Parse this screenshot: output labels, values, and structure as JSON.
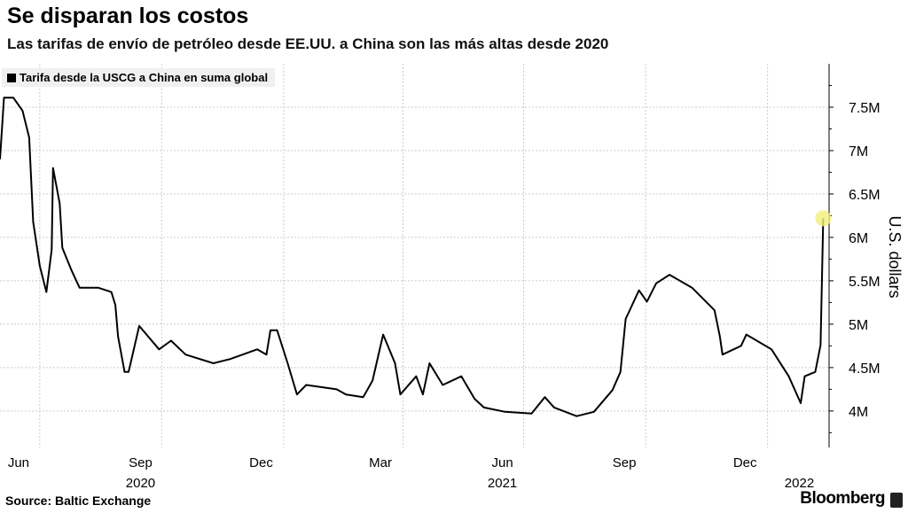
{
  "title": "Se disparan los costos",
  "subtitle": "Las tarifas de envío de petróleo desde EE.UU. a China son las más altas desde 2020",
  "source": "Source:  Baltic Exchange",
  "brand": "Bloomberg",
  "chart_data": {
    "type": "line",
    "title": "Se disparan los costos",
    "ylabel": "U.S. dollars",
    "ylim": [
      3580000,
      8000000
    ],
    "y_ticks": [
      {
        "v": 4000000,
        "label": "4M"
      },
      {
        "v": 4500000,
        "label": "4.5M"
      },
      {
        "v": 5000000,
        "label": "5M"
      },
      {
        "v": 5500000,
        "label": "5.5M"
      },
      {
        "v": 6000000,
        "label": "6M"
      },
      {
        "v": 6500000,
        "label": "6.5M"
      },
      {
        "v": 7000000,
        "label": "7M"
      },
      {
        "v": 7500000,
        "label": "7.5M"
      }
    ],
    "x_ticks": [
      {
        "date": "2020-06-15",
        "label": "Jun",
        "year": ""
      },
      {
        "date": "2020-09-15",
        "label": "Sep",
        "year": "2020"
      },
      {
        "date": "2020-12-15",
        "label": "Dec",
        "year": ""
      },
      {
        "date": "2021-03-15",
        "label": "Mar",
        "year": ""
      },
      {
        "date": "2021-06-15",
        "label": "Jun",
        "year": "2021"
      },
      {
        "date": "2021-09-15",
        "label": "Sep",
        "year": ""
      },
      {
        "date": "2021-12-15",
        "label": "Dec",
        "year": ""
      },
      {
        "date": "2022-01-25",
        "label": "",
        "year": "2022"
      }
    ],
    "grid_lines": [
      "2020-07-01",
      "2020-10-01",
      "2021-01-01",
      "2021-04-01",
      "2021-07-01",
      "2021-10-01",
      "2022-01-01"
    ],
    "grid": true,
    "legend_position": "top-left",
    "series": [
      {
        "name": "Tarifa desde la USCG a China en suma global",
        "color": "#000000",
        "points": [
          [
            "2020-06-01",
            6900000
          ],
          [
            "2020-06-04",
            7610000
          ],
          [
            "2020-06-11",
            7610000
          ],
          [
            "2020-06-18",
            7460000
          ],
          [
            "2020-06-23",
            7150000
          ],
          [
            "2020-06-26",
            6180000
          ],
          [
            "2020-07-01",
            5670000
          ],
          [
            "2020-07-06",
            5370000
          ],
          [
            "2020-07-10",
            5860000
          ],
          [
            "2020-07-11",
            6800000
          ],
          [
            "2020-07-16",
            6390000
          ],
          [
            "2020-07-18",
            5880000
          ],
          [
            "2020-07-25",
            5620000
          ],
          [
            "2020-07-31",
            5420000
          ],
          [
            "2020-08-14",
            5420000
          ],
          [
            "2020-08-24",
            5370000
          ],
          [
            "2020-08-27",
            5220000
          ],
          [
            "2020-08-29",
            4860000
          ],
          [
            "2020-09-03",
            4450000
          ],
          [
            "2020-09-06",
            4450000
          ],
          [
            "2020-09-14",
            4980000
          ],
          [
            "2020-09-29",
            4710000
          ],
          [
            "2020-10-08",
            4810000
          ],
          [
            "2020-10-19",
            4650000
          ],
          [
            "2020-11-09",
            4550000
          ],
          [
            "2020-11-22",
            4600000
          ],
          [
            "2020-12-12",
            4710000
          ],
          [
            "2020-12-19",
            4650000
          ],
          [
            "2020-12-22",
            4930000
          ],
          [
            "2020-12-27",
            4930000
          ],
          [
            "2021-01-04",
            4550000
          ],
          [
            "2021-01-11",
            4190000
          ],
          [
            "2021-01-18",
            4300000
          ],
          [
            "2021-02-10",
            4250000
          ],
          [
            "2021-02-17",
            4190000
          ],
          [
            "2021-03-02",
            4160000
          ],
          [
            "2021-03-09",
            4350000
          ],
          [
            "2021-03-17",
            4880000
          ],
          [
            "2021-03-26",
            4550000
          ],
          [
            "2021-03-30",
            4190000
          ],
          [
            "2021-04-11",
            4400000
          ],
          [
            "2021-04-16",
            4190000
          ],
          [
            "2021-04-21",
            4550000
          ],
          [
            "2021-05-01",
            4300000
          ],
          [
            "2021-05-15",
            4400000
          ],
          [
            "2021-05-25",
            4140000
          ],
          [
            "2021-06-01",
            4040000
          ],
          [
            "2021-06-17",
            3990000
          ],
          [
            "2021-07-07",
            3970000
          ],
          [
            "2021-07-17",
            4160000
          ],
          [
            "2021-07-24",
            4040000
          ],
          [
            "2021-08-10",
            3940000
          ],
          [
            "2021-08-23",
            3990000
          ],
          [
            "2021-09-06",
            4240000
          ],
          [
            "2021-09-12",
            4450000
          ],
          [
            "2021-09-16",
            5060000
          ],
          [
            "2021-09-26",
            5390000
          ],
          [
            "2021-10-02",
            5260000
          ],
          [
            "2021-10-09",
            5470000
          ],
          [
            "2021-10-19",
            5570000
          ],
          [
            "2021-11-05",
            5420000
          ],
          [
            "2021-11-22",
            5160000
          ],
          [
            "2021-11-26",
            4860000
          ],
          [
            "2021-11-28",
            4650000
          ],
          [
            "2021-12-12",
            4750000
          ],
          [
            "2021-12-16",
            4880000
          ],
          [
            "2022-01-04",
            4710000
          ],
          [
            "2022-01-17",
            4400000
          ],
          [
            "2022-01-26",
            4090000
          ],
          [
            "2022-01-29",
            4400000
          ],
          [
            "2022-02-06",
            4450000
          ],
          [
            "2022-02-10",
            4760000
          ],
          [
            "2022-02-12",
            6220000
          ]
        ]
      }
    ]
  }
}
